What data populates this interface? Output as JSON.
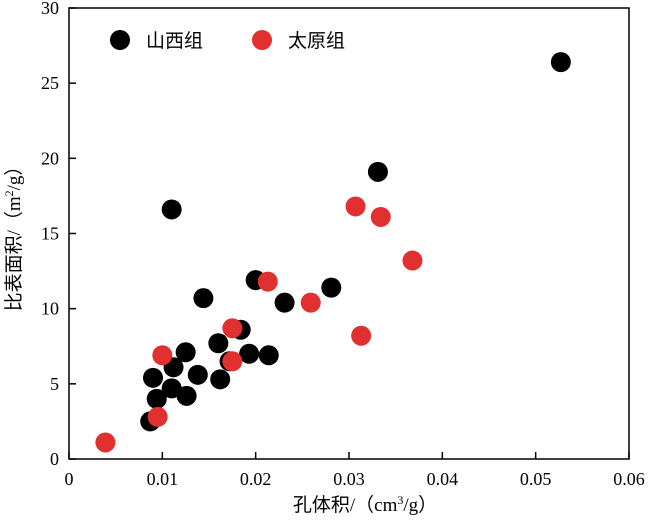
{
  "chart_data": {
    "type": "scatter",
    "xlabel_parts": [
      "孔体积/（cm",
      "3",
      "/g）"
    ],
    "ylabel_parts": [
      "比表面积/（m",
      "2",
      "/g）"
    ],
    "xlim": [
      0,
      0.06
    ],
    "ylim": [
      0,
      30
    ],
    "xticks": [
      0,
      0.01,
      0.02,
      0.03,
      0.04,
      0.05,
      0.06
    ],
    "xtick_labels": [
      "0",
      "0.01",
      "0.02",
      "0.03",
      "0.04",
      "0.05",
      "0.06"
    ],
    "yticks": [
      0,
      5,
      10,
      15,
      20,
      25,
      30
    ],
    "ytick_labels": [
      "0",
      "5",
      "10",
      "15",
      "20",
      "25",
      "30"
    ],
    "legend_position": "top-left",
    "series": [
      {
        "name": "山西组",
        "color": "#000000",
        "points": [
          {
            "x": 0.0087,
            "y": 2.5
          },
          {
            "x": 0.009,
            "y": 5.4
          },
          {
            "x": 0.0094,
            "y": 4.0
          },
          {
            "x": 0.011,
            "y": 4.7
          },
          {
            "x": 0.0112,
            "y": 6.1
          },
          {
            "x": 0.011,
            "y": 16.6
          },
          {
            "x": 0.0125,
            "y": 7.1
          },
          {
            "x": 0.0126,
            "y": 4.2
          },
          {
            "x": 0.0138,
            "y": 5.6
          },
          {
            "x": 0.0144,
            "y": 10.7
          },
          {
            "x": 0.016,
            "y": 7.7
          },
          {
            "x": 0.0162,
            "y": 5.3
          },
          {
            "x": 0.0172,
            "y": 6.5
          },
          {
            "x": 0.0184,
            "y": 8.6
          },
          {
            "x": 0.0193,
            "y": 7.0
          },
          {
            "x": 0.02,
            "y": 11.9
          },
          {
            "x": 0.0214,
            "y": 6.9
          },
          {
            "x": 0.0231,
            "y": 10.4
          },
          {
            "x": 0.0281,
            "y": 11.4
          },
          {
            "x": 0.0331,
            "y": 19.1
          },
          {
            "x": 0.0527,
            "y": 26.4
          }
        ]
      },
      {
        "name": "太原组",
        "color": "#e03030",
        "points": [
          {
            "x": 0.0039,
            "y": 1.1
          },
          {
            "x": 0.0095,
            "y": 2.8
          },
          {
            "x": 0.01,
            "y": 6.9
          },
          {
            "x": 0.0175,
            "y": 8.7
          },
          {
            "x": 0.0175,
            "y": 6.5
          },
          {
            "x": 0.0213,
            "y": 11.8
          },
          {
            "x": 0.0259,
            "y": 10.4
          },
          {
            "x": 0.0307,
            "y": 16.8
          },
          {
            "x": 0.0313,
            "y": 8.2
          },
          {
            "x": 0.0334,
            "y": 16.1
          },
          {
            "x": 0.0368,
            "y": 13.2
          }
        ]
      }
    ]
  }
}
